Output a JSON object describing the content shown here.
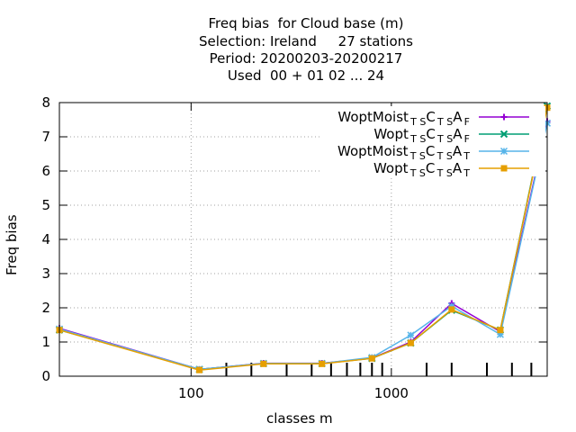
{
  "chart_data": {
    "type": "line",
    "title_lines": [
      "Freq bias  for Cloud base (m)",
      "Selection: Ireland     27 stations",
      "Period: 20200203-20200217",
      "Used  00 + 01 02 ... 24"
    ],
    "xlabel": "classes m",
    "ylabel": "Freq bias",
    "x_scale": "log",
    "xlim": [
      22,
      6000
    ],
    "ylim": [
      0,
      8
    ],
    "grid": true,
    "legend_position": "top-right",
    "x_ticks": [
      {
        "value": 100,
        "label": "100"
      },
      {
        "value": 1000,
        "label": "1000"
      }
    ],
    "y_ticks": [
      0,
      1,
      2,
      3,
      4,
      5,
      6,
      7,
      8
    ],
    "x": [
      22,
      110,
      230,
      450,
      800,
      1250,
      2000,
      3500,
      6000
    ],
    "series": [
      {
        "legend": {
          "base": "WoptMoist",
          "sub1": "T S",
          "mid": "C",
          "sub2": "T S",
          "tail": "A",
          "sub3": "F"
        },
        "color": "#9400d3",
        "marker": "plus",
        "values": [
          1.4,
          0.2,
          0.38,
          0.38,
          0.53,
          1.0,
          2.13,
          1.3,
          7.45
        ]
      },
      {
        "legend": {
          "base": "Wopt",
          "sub1": "T S",
          "mid": "C",
          "sub2": "T S",
          "tail": "A",
          "sub3": "F"
        },
        "color": "#009e73",
        "marker": "cross",
        "values": [
          1.35,
          0.2,
          0.37,
          0.37,
          0.52,
          0.97,
          1.93,
          1.35,
          7.9
        ]
      },
      {
        "legend": {
          "base": "WoptMoist",
          "sub1": "T S",
          "mid": "C",
          "sub2": "T S",
          "tail": "A",
          "sub3": "T"
        },
        "color": "#56b4e9",
        "marker": "star",
        "values": [
          1.38,
          0.2,
          0.37,
          0.37,
          0.55,
          1.2,
          2.05,
          1.22,
          7.4
        ]
      },
      {
        "legend": {
          "base": "Wopt",
          "sub1": "T S",
          "mid": "C",
          "sub2": "T S",
          "tail": "A",
          "sub3": "T"
        },
        "color": "#e69f00",
        "marker": "box",
        "values": [
          1.35,
          0.18,
          0.36,
          0.36,
          0.52,
          0.97,
          1.95,
          1.35,
          7.85
        ]
      }
    ],
    "minor_ticks_x": [
      150,
      200,
      300,
      400,
      500,
      600,
      700,
      800,
      900,
      1500,
      2000,
      3000,
      4000,
      5000
    ]
  }
}
